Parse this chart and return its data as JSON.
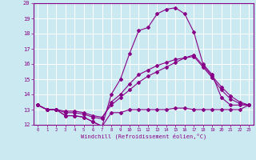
{
  "title": "",
  "xlabel": "Windchill (Refroidissement éolien,°C)",
  "background_color": "#cbe9f0",
  "line_color": "#880088",
  "grid_color": "#ffffff",
  "xlim": [
    -0.5,
    23.5
  ],
  "ylim": [
    12,
    20
  ],
  "xticks": [
    0,
    1,
    2,
    3,
    4,
    5,
    6,
    7,
    8,
    9,
    10,
    11,
    12,
    13,
    14,
    15,
    16,
    17,
    18,
    19,
    20,
    21,
    22,
    23
  ],
  "yticks": [
    12,
    13,
    14,
    15,
    16,
    17,
    18,
    19,
    20
  ],
  "line1_x": [
    0,
    1,
    2,
    3,
    4,
    5,
    6,
    7,
    8,
    9,
    10,
    11,
    12,
    13,
    14,
    15,
    16,
    17,
    18,
    19,
    20,
    21,
    22,
    23
  ],
  "line1_y": [
    13.3,
    13.0,
    13.0,
    12.6,
    12.6,
    12.5,
    12.2,
    11.9,
    12.8,
    12.8,
    13.0,
    13.0,
    13.0,
    13.0,
    13.0,
    13.1,
    13.1,
    13.0,
    13.0,
    13.0,
    13.0,
    13.0,
    13.0,
    13.3
  ],
  "line2_x": [
    0,
    1,
    2,
    3,
    4,
    5,
    6,
    7,
    8,
    9,
    10,
    11,
    12,
    13,
    14,
    15,
    16,
    17,
    18,
    19,
    20,
    21,
    22,
    23
  ],
  "line2_y": [
    13.3,
    13.0,
    13.0,
    12.6,
    12.6,
    12.5,
    12.2,
    11.9,
    14.0,
    15.0,
    16.7,
    18.2,
    18.4,
    19.3,
    19.6,
    19.7,
    19.3,
    18.1,
    16.0,
    15.3,
    13.8,
    13.3,
    13.3,
    13.3
  ],
  "line3_x": [
    0,
    1,
    2,
    3,
    4,
    5,
    6,
    7,
    8,
    9,
    10,
    11,
    12,
    13,
    14,
    15,
    16,
    17,
    18,
    19,
    20,
    21,
    22,
    23
  ],
  "line3_y": [
    13.3,
    13.0,
    13.0,
    12.9,
    12.9,
    12.8,
    12.6,
    12.5,
    13.3,
    13.8,
    14.3,
    14.8,
    15.2,
    15.5,
    15.8,
    16.1,
    16.4,
    16.6,
    15.9,
    15.2,
    14.5,
    13.9,
    13.5,
    13.3
  ],
  "line4_x": [
    0,
    1,
    2,
    3,
    4,
    5,
    6,
    7,
    8,
    9,
    10,
    11,
    12,
    13,
    14,
    15,
    16,
    17,
    18,
    19,
    20,
    21,
    22,
    23
  ],
  "line4_y": [
    13.3,
    13.0,
    13.0,
    12.8,
    12.8,
    12.7,
    12.5,
    12.4,
    13.5,
    14.0,
    14.7,
    15.3,
    15.6,
    15.9,
    16.1,
    16.3,
    16.4,
    16.5,
    15.8,
    15.1,
    14.3,
    13.7,
    13.4,
    13.3
  ]
}
